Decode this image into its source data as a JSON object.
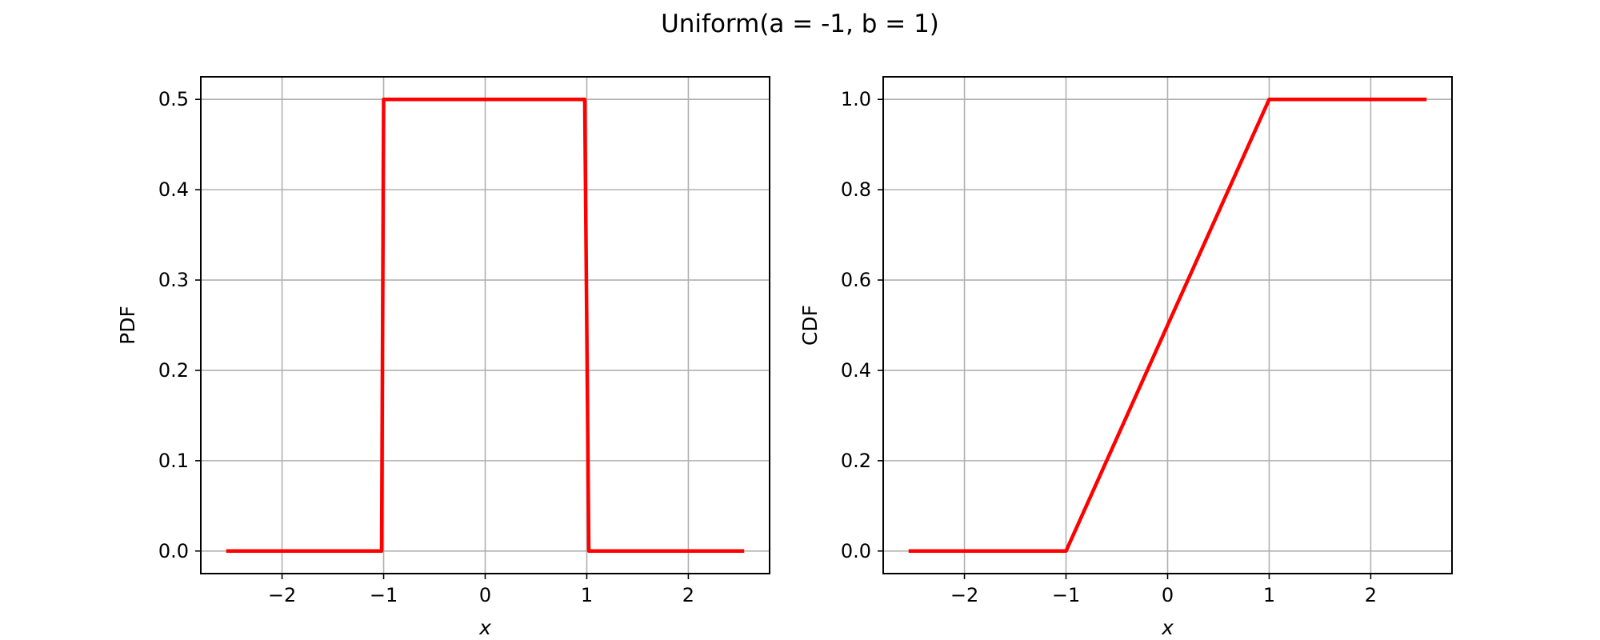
{
  "figure": {
    "suptitle": "Uniform(a = -1, b = 1)"
  },
  "colors": {
    "line": "#ff0000",
    "grid": "#b0b0b0",
    "axes": "#000000"
  },
  "chart_data": [
    {
      "type": "line",
      "title": "",
      "xlabel": "x",
      "ylabel": "PDF",
      "xlim": [
        -2.8,
        2.8
      ],
      "ylim": [
        -0.025,
        0.525
      ],
      "xticks": [
        -2,
        -1,
        0,
        1,
        2
      ],
      "xtick_labels": [
        "−2",
        "−1",
        "0",
        "1",
        "2"
      ],
      "yticks": [
        0.0,
        0.1,
        0.2,
        0.3,
        0.4,
        0.5
      ],
      "ytick_labels": [
        "0.0",
        "0.1",
        "0.2",
        "0.3",
        "0.4",
        "0.5"
      ],
      "grid": true,
      "series": [
        {
          "color": "#ff0000",
          "x": [
            -2.55,
            -1.02,
            -1.0,
            0.98,
            1.02,
            2.55
          ],
          "y": [
            0.0,
            0.0,
            0.5,
            0.5,
            0.0,
            0.0
          ]
        }
      ]
    },
    {
      "type": "line",
      "title": "",
      "xlabel": "x",
      "ylabel": "CDF",
      "xlim": [
        -2.8,
        2.8
      ],
      "ylim": [
        -0.05,
        1.05
      ],
      "xticks": [
        -2,
        -1,
        0,
        1,
        2
      ],
      "xtick_labels": [
        "−2",
        "−1",
        "0",
        "1",
        "2"
      ],
      "yticks": [
        0.0,
        0.2,
        0.4,
        0.6,
        0.8,
        1.0
      ],
      "ytick_labels": [
        "0.0",
        "0.2",
        "0.4",
        "0.6",
        "0.8",
        "1.0"
      ],
      "grid": true,
      "series": [
        {
          "color": "#ff0000",
          "x": [
            -2.55,
            -1.02,
            -1.0,
            1.0,
            1.02,
            2.55
          ],
          "y": [
            0.0,
            0.0,
            0.0,
            1.0,
            1.0,
            1.0
          ]
        }
      ]
    }
  ]
}
